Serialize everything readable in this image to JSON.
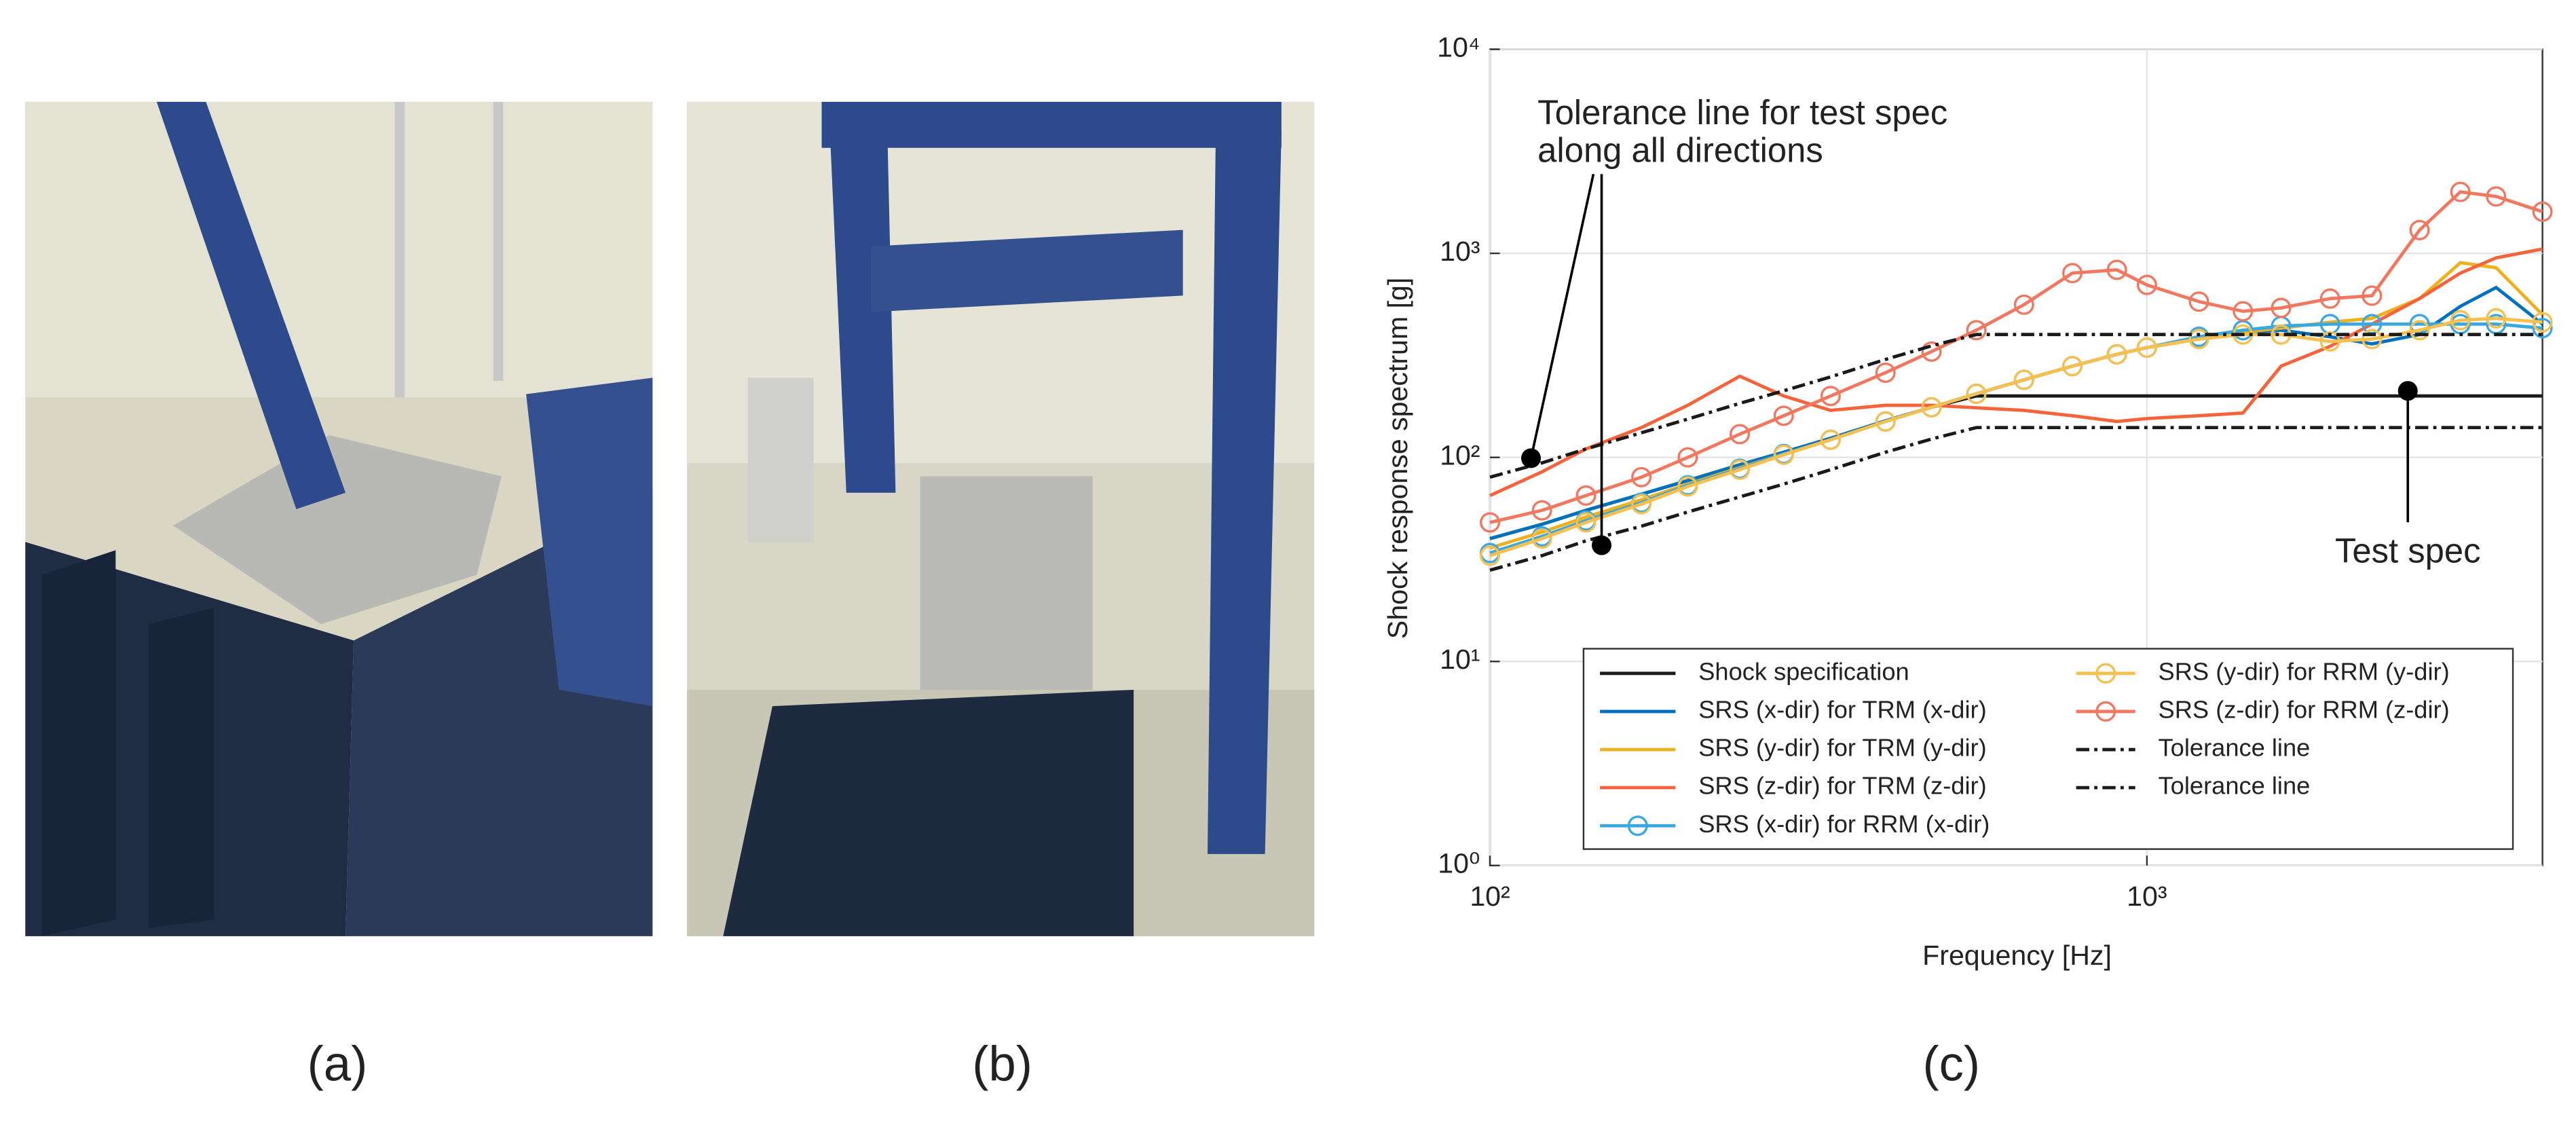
{
  "chart_data": {
    "type": "line",
    "log_x": true,
    "log_y": true,
    "grid": true,
    "legend": "lower right",
    "xlabel": "Frequency [Hz]",
    "ylabel": "Shock response spectrum [g]",
    "annotations": [
      "Tolerance line for test spec",
      "along all directions",
      "Test spec"
    ],
    "xlim": [
      100,
      4000
    ],
    "ylim": [
      1,
      10000
    ],
    "xticks": [
      {
        "value": 100,
        "label": "10²"
      },
      {
        "value": 1000,
        "label": "10³"
      }
    ],
    "yticks": [
      {
        "value": 1,
        "label": "10⁰"
      },
      {
        "value": 10,
        "label": "10¹"
      },
      {
        "value": 100,
        "label": "10²"
      },
      {
        "value": 1000,
        "label": "10³"
      },
      {
        "value": 10000,
        "label": "10⁴"
      }
    ],
    "x": [
      100,
      120,
      140,
      170,
      200,
      240,
      280,
      330,
      400,
      470,
      550,
      650,
      770,
      900,
      1000,
      1200,
      1400,
      1600,
      1900,
      2200,
      2600,
      3000,
      3400,
      4000
    ],
    "series": [
      {
        "name": "Shock specification",
        "color": "#1a1a1a",
        "linestyle": "solid",
        "marker": "none",
        "values": [
          40,
          47,
          55,
          66,
          77,
          92,
          106,
          124,
          151,
          176,
          200,
          200,
          200,
          200,
          200,
          200,
          200,
          200,
          200,
          200,
          200,
          200,
          200,
          200
        ]
      },
      {
        "name": "SRS (x-dir) for TRM (x-dir)",
        "color": "#0072bd",
        "linestyle": "solid",
        "marker": "none",
        "values": [
          40,
          47,
          55,
          66,
          77,
          92,
          106,
          124,
          151,
          176,
          205,
          240,
          280,
          320,
          345,
          380,
          410,
          420,
          390,
          360,
          400,
          550,
          680,
          450
        ]
      },
      {
        "name": "SRS (y-dir) for TRM (y-dir)",
        "color": "#edb120",
        "linestyle": "solid",
        "marker": "none",
        "values": [
          36,
          43,
          51,
          62,
          74,
          89,
          104,
          122,
          150,
          176,
          205,
          240,
          280,
          320,
          345,
          380,
          410,
          430,
          460,
          480,
          600,
          900,
          850,
          500
        ]
      },
      {
        "name": "SRS (z-dir) for TRM (z-dir)",
        "color": "#f4643c",
        "linestyle": "solid",
        "marker": "none",
        "values": [
          65,
          85,
          110,
          140,
          180,
          250,
          200,
          170,
          180,
          180,
          175,
          170,
          160,
          150,
          155,
          160,
          165,
          280,
          350,
          450,
          600,
          800,
          950,
          1050
        ]
      },
      {
        "name": "SRS (x-dir) for RRM (x-dir)",
        "color": "#3aa8e0",
        "linestyle": "solid",
        "marker": "circle",
        "values": [
          34,
          41,
          49,
          60,
          73,
          88,
          104,
          122,
          150,
          176,
          205,
          240,
          280,
          320,
          345,
          390,
          420,
          440,
          450,
          450,
          450,
          450,
          450,
          430
        ]
      },
      {
        "name": "SRS (y-dir) for RRM (y-dir)",
        "color": "#f5c050",
        "linestyle": "solid",
        "marker": "circle",
        "values": [
          33,
          40,
          48,
          59,
          72,
          87,
          103,
          122,
          150,
          176,
          205,
          240,
          280,
          320,
          345,
          380,
          400,
          400,
          370,
          380,
          420,
          470,
          480,
          460
        ]
      },
      {
        "name": "SRS (z-dir) for RRM (z-dir)",
        "color": "#f07860",
        "linestyle": "solid",
        "marker": "circle",
        "values": [
          48,
          55,
          65,
          80,
          100,
          130,
          160,
          200,
          260,
          330,
          420,
          560,
          800,
          830,
          700,
          580,
          520,
          540,
          600,
          620,
          1300,
          2000,
          1900,
          1600
        ]
      },
      {
        "name": "Tolerance line",
        "color": "#1a1a1a",
        "linestyle": "dashdot",
        "marker": "none",
        "values": [
          80,
          94,
          110,
          132,
          154,
          184,
          212,
          248,
          302,
          352,
          400,
          400,
          400,
          400,
          400,
          400,
          400,
          400,
          400,
          400,
          400,
          400,
          400,
          400
        ]
      },
      {
        "name": "Tolerance line",
        "color": "#1a1a1a",
        "linestyle": "dashdot",
        "marker": "none",
        "values": [
          28,
          33,
          39,
          46,
          54,
          64,
          74,
          87,
          106,
          123,
          140,
          140,
          140,
          140,
          140,
          140,
          140,
          140,
          140,
          140,
          140,
          140,
          140,
          140
        ]
      }
    ]
  },
  "panel_labels": [
    "(a)",
    "(b)",
    "(c)"
  ]
}
